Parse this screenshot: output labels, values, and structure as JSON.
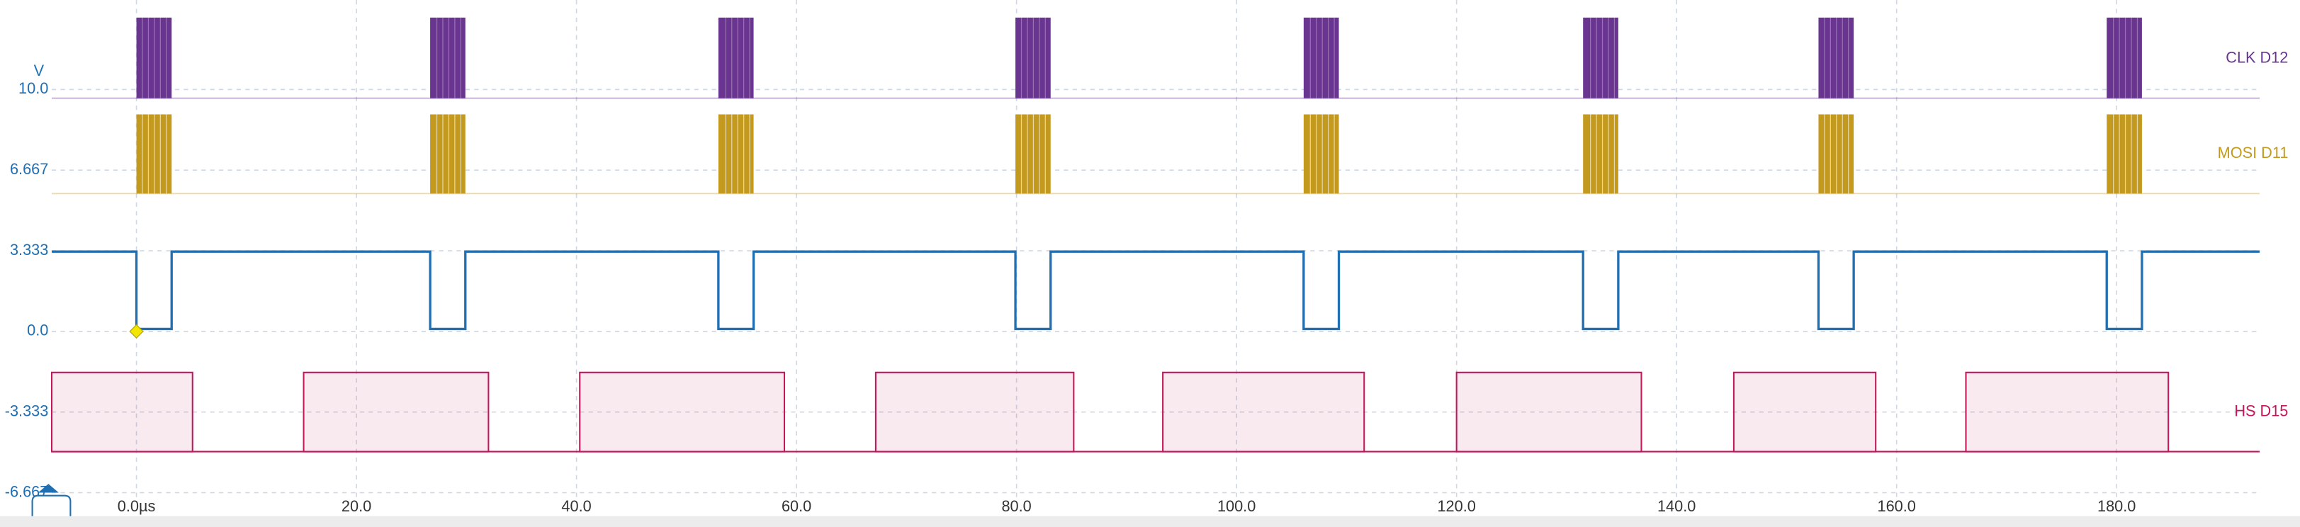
{
  "chart_data": {
    "type": "logic",
    "y_label": "V",
    "xlim": [
      -7.7,
      193
    ],
    "ylim": [
      -6.9,
      13.7
    ],
    "xticks": [
      {
        "value": 0,
        "label": "0.0µs"
      },
      {
        "value": 20,
        "label": "20.0"
      },
      {
        "value": 40,
        "label": "40.0"
      },
      {
        "value": 60,
        "label": "60.0"
      },
      {
        "value": 80,
        "label": "80.0"
      },
      {
        "value": 100,
        "label": "100.0"
      },
      {
        "value": 120,
        "label": "120.0"
      },
      {
        "value": 140,
        "label": "140.0"
      },
      {
        "value": 160,
        "label": "160.0"
      },
      {
        "value": 180,
        "label": "180.0"
      }
    ],
    "yticks": [
      {
        "value": 10,
        "label": "10.0"
      },
      6.667,
      3.333,
      {
        "value": 0,
        "label": "0.0"
      },
      -3.333,
      -6.667
    ],
    "grid": true,
    "digital": [
      {
        "name": "CLK D12",
        "color": "#6a3590",
        "bursts": [
          [
            0,
            3.2
          ],
          [
            26.7,
            29.9
          ],
          [
            52.9,
            56.1
          ],
          [
            79.9,
            83.1
          ],
          [
            106.1,
            109.3
          ],
          [
            131.5,
            134.7
          ],
          [
            152.9,
            156.1
          ],
          [
            179.1,
            182.3
          ]
        ]
      },
      {
        "name": "MOSI D11",
        "color": "#c49a1e",
        "bursts": [
          [
            0,
            3.2
          ],
          [
            26.7,
            29.9
          ],
          [
            52.9,
            56.1
          ],
          [
            79.9,
            83.1
          ],
          [
            106.1,
            109.3
          ],
          [
            131.5,
            134.7
          ],
          [
            152.9,
            156.1
          ],
          [
            179.1,
            182.3
          ]
        ]
      },
      {
        "name": "HS D15",
        "color": "#c2185b",
        "pulses": [
          [
            -7.7,
            5.1
          ],
          [
            15.2,
            32.0
          ],
          [
            40.3,
            58.9
          ],
          [
            67.2,
            85.2
          ],
          [
            93.3,
            111.6
          ],
          [
            120.0,
            136.8
          ],
          [
            145.2,
            158.1
          ],
          [
            166.3,
            184.7
          ]
        ]
      }
    ],
    "analog": {
      "color": "#1f6fb2",
      "x": [
        -7.7,
        0,
        0,
        3.2,
        3.2,
        26.7,
        26.7,
        29.9,
        29.9,
        52.9,
        52.9,
        56.1,
        56.1,
        79.9,
        79.9,
        83.1,
        83.1,
        106.1,
        106.1,
        109.3,
        109.3,
        131.5,
        131.5,
        134.7,
        134.7,
        152.9,
        152.9,
        156.1,
        156.1,
        179.1,
        179.1,
        182.3,
        182.3,
        193
      ],
      "values": [
        3.3,
        3.3,
        0.1,
        0.1,
        3.3,
        3.3,
        0.1,
        0.1,
        3.3,
        3.3,
        0.1,
        0.1,
        3.3,
        3.3,
        0.1,
        0.1,
        3.3,
        3.3,
        0.1,
        0.1,
        3.3,
        3.3,
        0.1,
        0.1,
        3.3,
        3.3,
        0.1,
        0.1,
        3.3,
        3.3,
        0.1,
        0.1,
        3.3,
        3.3
      ]
    },
    "trigger": {
      "x": 0,
      "y": 0,
      "color": "#f2e600"
    }
  }
}
